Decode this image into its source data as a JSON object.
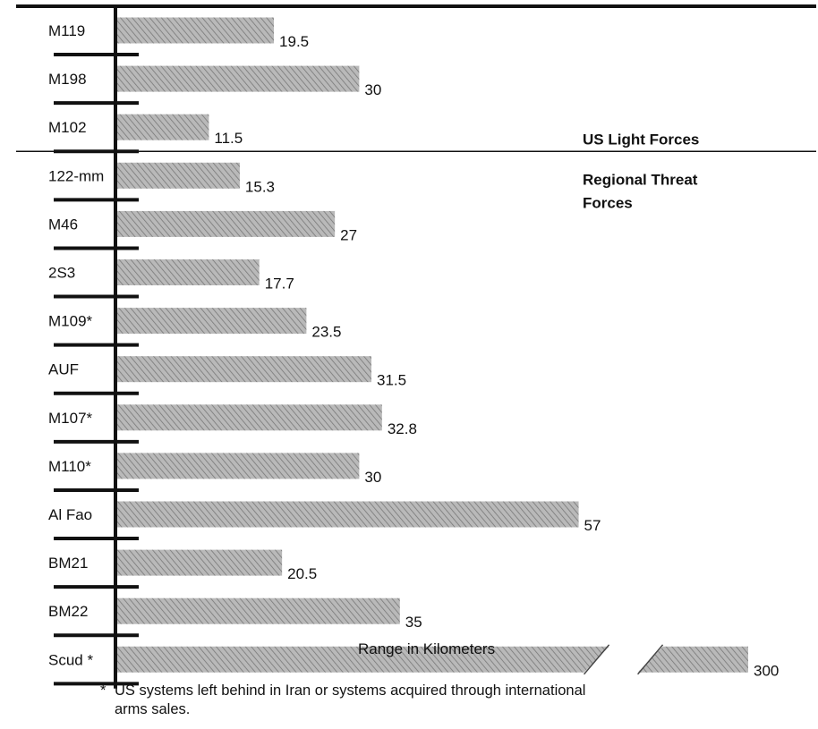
{
  "chart_data": {
    "type": "bar",
    "orientation": "horizontal",
    "xlabel": "Range in Kilometers",
    "categories": [
      "M119",
      "M198",
      "M102",
      "122-mm",
      "M46",
      "2S3",
      "M109*",
      "AUF",
      "M107*",
      "M110*",
      "Al Fao",
      "BM21",
      "BM22",
      "Scud *"
    ],
    "values": [
      19.5,
      30,
      11.5,
      15.3,
      27,
      17.7,
      23.5,
      31.5,
      32.8,
      30,
      57,
      20.5,
      35,
      300
    ],
    "value_labels": [
      "19.5",
      "30",
      "11.5",
      "15.3",
      "27",
      "17.7",
      "23.5",
      "31.5",
      "32.8",
      "30",
      "57",
      "20.5",
      "35",
      "300"
    ],
    "axis_break": {
      "category": "Scud *",
      "note": "bar broken between approx. 57 and 300"
    },
    "groups": [
      {
        "label": "US Light Forces",
        "categories": [
          "M119",
          "M198",
          "M102"
        ]
      },
      {
        "label_lines": [
          "Regional Threat",
          "Forces"
        ],
        "categories": [
          "122-mm",
          "M46",
          "2S3",
          "M109*",
          "AUF",
          "M107*",
          "M110*",
          "Al Fao",
          "BM21",
          "BM22",
          "Scud *"
        ]
      }
    ],
    "bar_pattern": "diagonal hatch, gray",
    "bar_color": "#9a9a9a",
    "axis_color": "#111111"
  },
  "footnote": {
    "mark": "*",
    "line1": "US systems left behind in Iran or systems acquired through international",
    "line2": "arms sales."
  }
}
